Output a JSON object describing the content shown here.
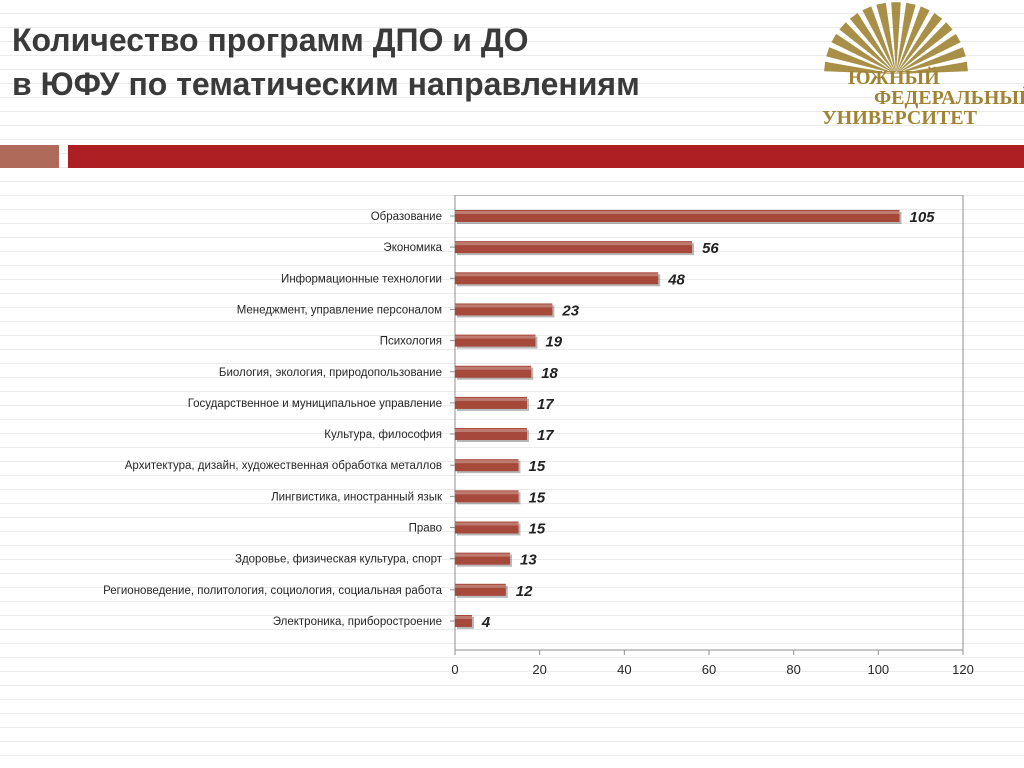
{
  "header": {
    "title_line1": "Количество программ ДПО и ДО",
    "title_line2": "в ЮФУ по тематическим направлениям"
  },
  "logo": {
    "line1": "ЮЖНЫЙ",
    "line2": "ФЕДЕРАЛЬНЫЙ",
    "line3": "УНИВЕРСИТЕТ",
    "color": "#a08434"
  },
  "colors": {
    "accent_red": "#ae1f24",
    "accent_rose": "#b06a5a",
    "bar": "#a6483a"
  },
  "chart_data": {
    "type": "bar",
    "orientation": "horizontal",
    "categories": [
      "Образование",
      "Экономика",
      "Информационные технологии",
      "Менеджмент, управление персоналом",
      "Психология",
      "Биология, экология, природопользование",
      "Государственное и муниципальное управление",
      "Культура, философия",
      "Архитектура, дизайн, художественная обработка металлов",
      "Лингвистика, иностранный язык",
      "Право",
      "Здоровье, физическая культура, спорт",
      "Регионоведение, политология, социология, социальная работа",
      "Электроника, приборостроение"
    ],
    "values": [
      105,
      56,
      48,
      23,
      19,
      18,
      17,
      17,
      15,
      15,
      15,
      13,
      12,
      4
    ],
    "xlim": [
      0,
      120
    ],
    "xticks": [
      0,
      20,
      40,
      60,
      80,
      100,
      120
    ],
    "title": "",
    "xlabel": "",
    "ylabel": "",
    "grid": false,
    "data_labels": true
  }
}
